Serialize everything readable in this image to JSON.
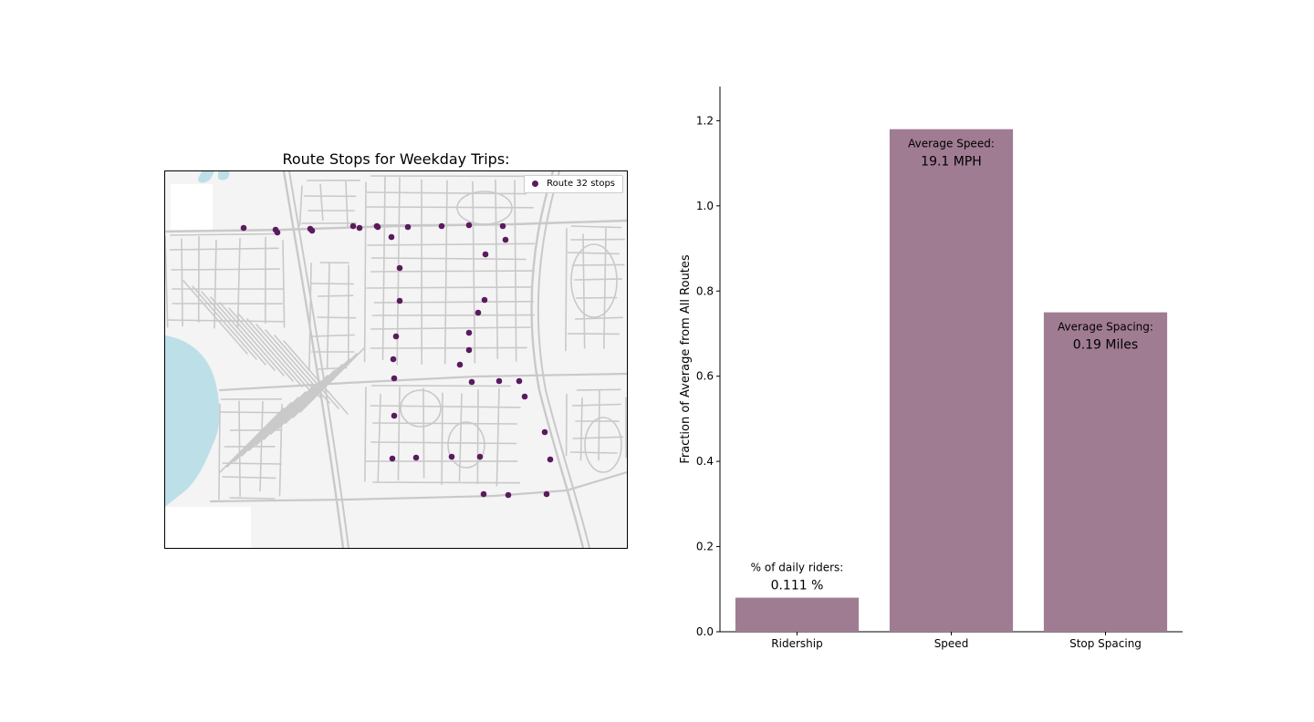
{
  "map": {
    "title": "Route Stops for Weekday Trips:",
    "legend_label": "Route 32 stops",
    "stop_color": "#5b1a5e",
    "water_color": "#bddfe8",
    "road_color": "#c9c9c9"
  },
  "chart_data": {
    "type": "bar",
    "categories": [
      "Ridership",
      "Speed",
      "Stop Spacing"
    ],
    "values": [
      0.08,
      1.18,
      0.75
    ],
    "ylabel": "Fraction of Average from All Routes",
    "ylim": [
      0,
      1.28
    ],
    "yticks": [
      "0.0",
      "0.2",
      "0.4",
      "0.6",
      "0.8",
      "1.0",
      "1.2"
    ],
    "bar_color": "#a07c93",
    "grid": false,
    "annotations": [
      {
        "label": "% of daily riders:",
        "value": "0.111 %",
        "position": "above"
      },
      {
        "label": "Average Speed:",
        "value": "19.1 MPH",
        "position": "inside-top"
      },
      {
        "label": "Average Spacing:",
        "value": "0.19 Miles",
        "position": "inside-top"
      }
    ]
  }
}
